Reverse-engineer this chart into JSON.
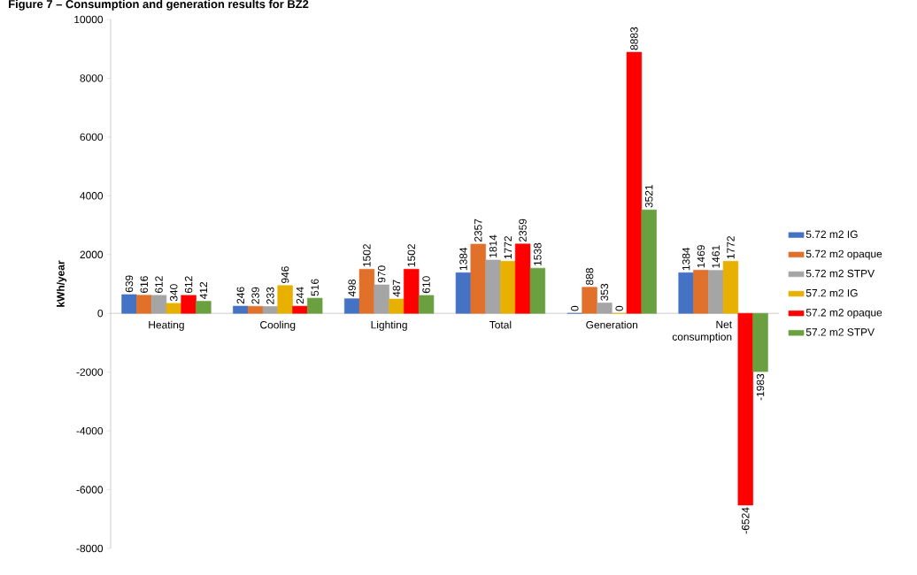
{
  "chart_data": {
    "type": "bar",
    "title": "Figure 7 – Consumption and generation results for BZ2",
    "ylabel": "kWh/year",
    "categories": [
      "Heating",
      "Cooling",
      "Lighting",
      "Total",
      "Generation",
      "Net consumption"
    ],
    "series": [
      {
        "name": "5.72 m2 IG",
        "color": "#4472c4",
        "values": [
          639,
          246,
          498,
          1384,
          0,
          1384
        ]
      },
      {
        "name": "5.72 m2 opaque",
        "color": "#e0702a",
        "values": [
          616,
          239,
          1502,
          2357,
          888,
          1469
        ]
      },
      {
        "name": "5.72 m2 STPV",
        "color": "#a5a5a5",
        "values": [
          612,
          233,
          970,
          1814,
          353,
          1461
        ]
      },
      {
        "name": "57.2 m2 IG",
        "color": "#e8b000",
        "values": [
          340,
          946,
          487,
          1772,
          0,
          1772
        ]
      },
      {
        "name": "57.2 m2 opaque",
        "color": "#ff0000",
        "values": [
          612,
          244,
          1502,
          2359,
          8883,
          -6524
        ]
      },
      {
        "name": "57.2 m2 STPV",
        "color": "#6aa040",
        "values": [
          412,
          516,
          610,
          1538,
          3521,
          -1983
        ]
      }
    ],
    "ylim": [
      -8000,
      10000
    ],
    "yticks": [
      -8000,
      -6000,
      -4000,
      -2000,
      0,
      2000,
      4000,
      6000,
      8000,
      10000
    ],
    "data_labels": true,
    "legend": "right",
    "grid": false
  }
}
